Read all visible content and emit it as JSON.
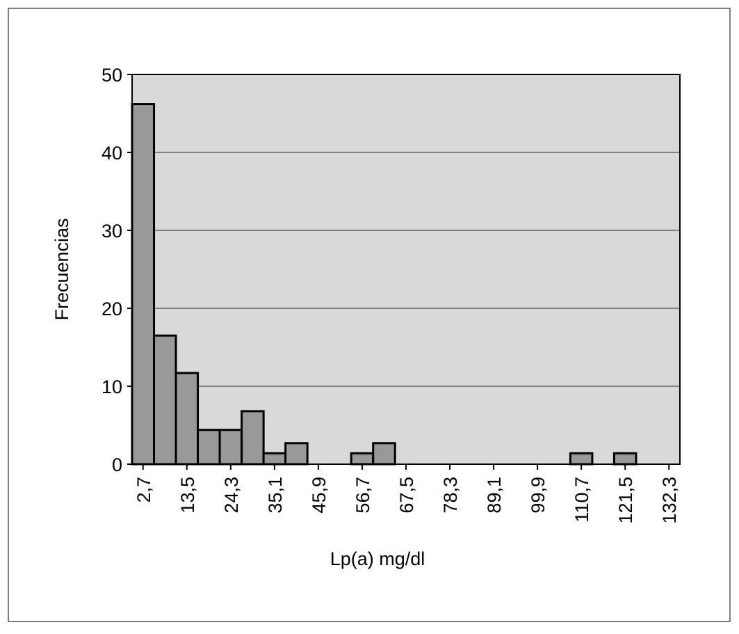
{
  "chart_data": {
    "type": "bar",
    "x_label": "Lp(a) mg/dl",
    "y_label": "Frecuencias",
    "categories": [
      "2,7",
      null,
      "13,5",
      null,
      "24,3",
      null,
      "35,1",
      null,
      "45,9",
      null,
      "56,7",
      null,
      "67,5",
      null,
      "78,3",
      null,
      "89,1",
      null,
      "99,9",
      null,
      "110,7",
      null,
      "121,5",
      null,
      "132,3"
    ],
    "values": [
      46.2,
      16.5,
      11.7,
      4.4,
      4.4,
      6.8,
      1.4,
      2.7,
      0,
      0,
      1.4,
      2.7,
      0,
      0,
      0,
      0,
      0,
      0,
      0,
      0,
      1.4,
      0,
      1.4,
      0,
      0
    ],
    "color": "#999999",
    "ylim": [
      0,
      50
    ],
    "yticks": [
      0,
      10,
      20,
      30,
      40,
      50
    ],
    "grid": true
  }
}
